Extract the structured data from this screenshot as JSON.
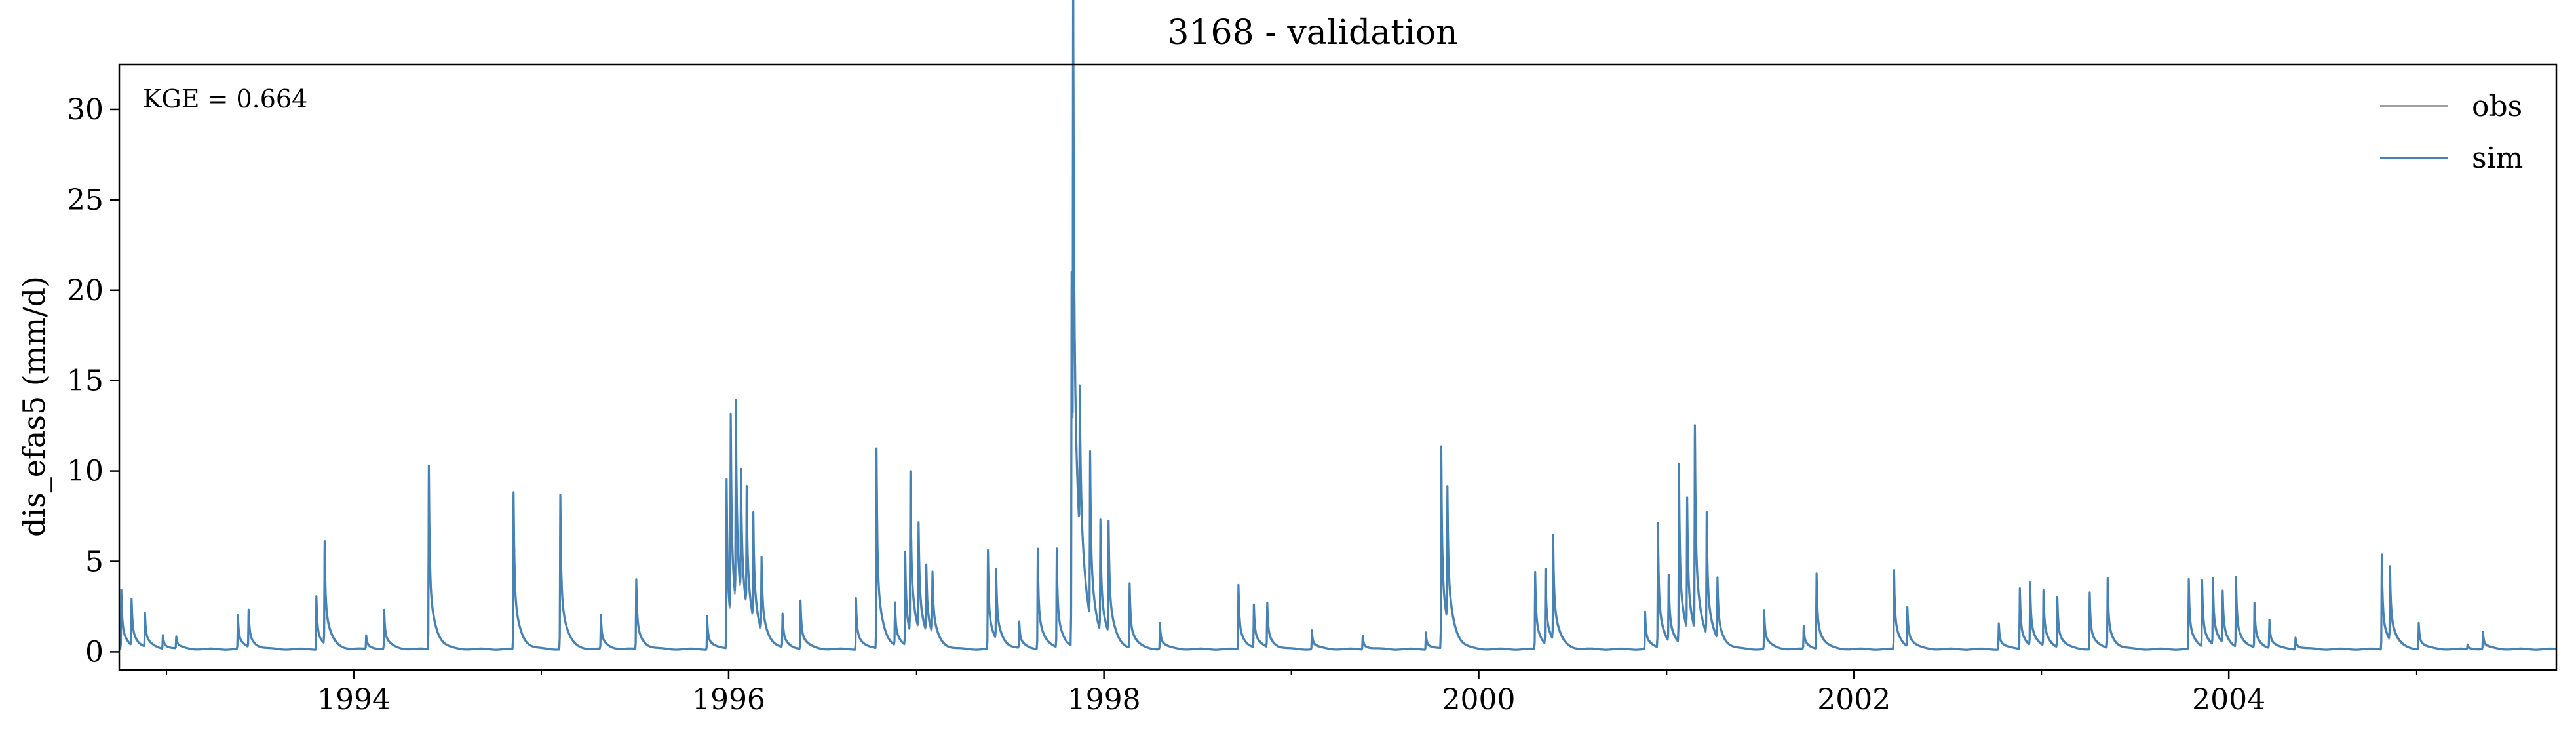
{
  "chart_data": {
    "type": "line",
    "title": "3168 - validation",
    "xlabel": "",
    "ylabel": "dis_efas5 (mm/d)",
    "annotation": "KGE = 0.664",
    "x_axis": {
      "type": "date",
      "min": "1992-10-01",
      "max": "2005-09-30",
      "major_ticks": [
        "1994-01-01",
        "1996-01-01",
        "1998-01-01",
        "2000-01-01",
        "2002-01-01",
        "2004-01-01"
      ],
      "major_tick_labels": [
        "1994",
        "1996",
        "1998",
        "2000",
        "2002",
        "2004"
      ],
      "minor_ticks": [
        "1993-01-01",
        "1995-01-01",
        "1997-01-01",
        "1999-01-01",
        "2001-01-01",
        "2003-01-01",
        "2005-01-01"
      ]
    },
    "y_axis": {
      "min": -1.0,
      "max": 32.5,
      "ticks": [
        0,
        5,
        10,
        15,
        20,
        25,
        30
      ],
      "tick_labels": [
        "0",
        "5",
        "10",
        "15",
        "20",
        "25",
        "30"
      ]
    },
    "grid": false,
    "legend": {
      "position": "top-right",
      "entries": [
        "obs",
        "sim"
      ]
    },
    "baseflow": 0.15,
    "series": [
      {
        "name": "obs",
        "color": "#a0a0a0",
        "peaks": [
          [
            "1992-10-05",
            3.2
          ],
          [
            "1992-10-25",
            2.6
          ],
          [
            "1992-11-20",
            1.9
          ],
          [
            "1992-12-25",
            0.9
          ],
          [
            "1993-01-20",
            0.8
          ],
          [
            "1993-05-20",
            1.9
          ],
          [
            "1993-06-10",
            2.1
          ],
          [
            "1993-10-20",
            3.0
          ],
          [
            "1993-11-05",
            5.4
          ],
          [
            "1994-01-25",
            0.8
          ],
          [
            "1994-03-01",
            2.2
          ],
          [
            "1994-05-27",
            9.8
          ],
          [
            "1994-11-08",
            8.5
          ],
          [
            "1995-02-07",
            8.5
          ],
          [
            "1995-04-27",
            1.9
          ],
          [
            "1995-07-05",
            3.8
          ],
          [
            "1995-11-20",
            1.9
          ],
          [
            "1995-12-28",
            9.0
          ],
          [
            "1996-01-05",
            10.5
          ],
          [
            "1996-01-15",
            10.8
          ],
          [
            "1996-01-25",
            7.0
          ],
          [
            "1996-02-05",
            6.5
          ],
          [
            "1996-02-18",
            5.5
          ],
          [
            "1996-03-05",
            4.0
          ],
          [
            "1996-04-15",
            1.9
          ],
          [
            "1996-05-20",
            2.5
          ],
          [
            "1996-09-05",
            2.9
          ],
          [
            "1996-10-15",
            10.8
          ],
          [
            "1996-11-20",
            2.4
          ],
          [
            "1996-12-10",
            5.0
          ],
          [
            "1996-12-20",
            8.5
          ],
          [
            "1997-01-05",
            5.5
          ],
          [
            "1997-01-20",
            3.5
          ],
          [
            "1997-02-01",
            3.3
          ],
          [
            "1997-05-20",
            5.3
          ],
          [
            "1997-06-05",
            3.8
          ],
          [
            "1997-07-20",
            1.5
          ],
          [
            "1997-08-25",
            5.4
          ],
          [
            "1997-10-01",
            5.4
          ],
          [
            "1997-10-30",
            20.0
          ],
          [
            "1997-11-02",
            30.8
          ],
          [
            "1997-11-15",
            8.0
          ],
          [
            "1997-12-05",
            9.0
          ],
          [
            "1997-12-25",
            6.0
          ],
          [
            "1998-01-10",
            6.0
          ],
          [
            "1998-02-20",
            3.4
          ],
          [
            "1998-04-20",
            1.5
          ],
          [
            "1998-09-20",
            3.5
          ],
          [
            "1998-10-20",
            2.3
          ],
          [
            "1998-11-15",
            2.4
          ],
          [
            "1999-02-10",
            1.0
          ],
          [
            "1999-05-20",
            0.8
          ],
          [
            "1999-09-20",
            1.0
          ],
          [
            "1999-10-20",
            10.8
          ],
          [
            "1999-11-01",
            7.0
          ],
          [
            "2000-04-20",
            4.2
          ],
          [
            "2000-05-10",
            4.0
          ],
          [
            "2000-05-25",
            5.5
          ],
          [
            "2000-11-20",
            2.0
          ],
          [
            "2000-12-15",
            6.5
          ],
          [
            "2001-01-05",
            3.5
          ],
          [
            "2001-01-25",
            9.5
          ],
          [
            "2001-02-10",
            7.0
          ],
          [
            "2001-02-25",
            11.0
          ],
          [
            "2001-03-20",
            6.5
          ],
          [
            "2001-04-10",
            3.3
          ],
          [
            "2001-07-10",
            2.2
          ],
          [
            "2001-09-25",
            1.3
          ],
          [
            "2001-10-20",
            4.0
          ],
          [
            "2002-03-20",
            4.3
          ],
          [
            "2002-04-15",
            2.2
          ],
          [
            "2002-10-10",
            1.5
          ],
          [
            "2002-11-20",
            3.3
          ],
          [
            "2002-12-10",
            3.3
          ],
          [
            "2003-01-05",
            3.0
          ],
          [
            "2003-02-01",
            2.7
          ],
          [
            "2003-04-05",
            3.1
          ],
          [
            "2003-05-10",
            3.7
          ],
          [
            "2003-10-15",
            3.7
          ],
          [
            "2003-11-10",
            3.5
          ],
          [
            "2003-12-01",
            3.5
          ],
          [
            "2003-12-20",
            2.8
          ],
          [
            "2004-01-15",
            3.8
          ],
          [
            "2004-02-20",
            2.4
          ],
          [
            "2004-03-20",
            1.6
          ],
          [
            "2004-05-10",
            0.7
          ],
          [
            "2004-10-25",
            5.0
          ],
          [
            "2004-11-10",
            3.8
          ],
          [
            "2005-01-05",
            1.5
          ],
          [
            "2005-04-10",
            0.3
          ],
          [
            "2005-05-10",
            0.9
          ]
        ]
      },
      {
        "name": "sim",
        "color": "#4682b4",
        "peaks": [
          [
            "1992-10-05",
            3.4
          ],
          [
            "1992-10-25",
            2.7
          ],
          [
            "1992-11-20",
            2.0
          ],
          [
            "1992-12-25",
            0.9
          ],
          [
            "1993-01-20",
            0.8
          ],
          [
            "1993-05-20",
            2.0
          ],
          [
            "1993-06-10",
            2.2
          ],
          [
            "1993-10-20",
            3.1
          ],
          [
            "1993-11-05",
            5.8
          ],
          [
            "1994-01-25",
            0.9
          ],
          [
            "1994-03-01",
            2.3
          ],
          [
            "1994-05-27",
            10.3
          ],
          [
            "1994-11-08",
            8.8
          ],
          [
            "1995-02-07",
            8.7
          ],
          [
            "1995-04-27",
            2.0
          ],
          [
            "1995-07-05",
            4.0
          ],
          [
            "1995-11-20",
            2.0
          ],
          [
            "1995-12-28",
            9.5
          ],
          [
            "1996-01-05",
            11.2
          ],
          [
            "1996-01-15",
            11.2
          ],
          [
            "1996-01-25",
            7.0
          ],
          [
            "1996-02-05",
            6.8
          ],
          [
            "1996-02-18",
            6.0
          ],
          [
            "1996-03-05",
            4.2
          ],
          [
            "1996-04-15",
            2.0
          ],
          [
            "1996-05-20",
            2.8
          ],
          [
            "1996-09-05",
            3.0
          ],
          [
            "1996-10-15",
            11.2
          ],
          [
            "1996-11-20",
            2.5
          ],
          [
            "1996-12-10",
            5.3
          ],
          [
            "1996-12-20",
            9.0
          ],
          [
            "1997-01-05",
            6.0
          ],
          [
            "1997-01-20",
            3.8
          ],
          [
            "1997-02-01",
            3.5
          ],
          [
            "1997-05-20",
            5.6
          ],
          [
            "1997-06-05",
            4.0
          ],
          [
            "1997-07-20",
            1.6
          ],
          [
            "1997-08-25",
            5.7
          ],
          [
            "1997-10-01",
            5.6
          ],
          [
            "1997-10-30",
            20.8
          ],
          [
            "1997-11-02",
            29.4
          ],
          [
            "1997-11-15",
            8.5
          ],
          [
            "1997-12-05",
            9.3
          ],
          [
            "1997-12-25",
            6.3
          ],
          [
            "1998-01-10",
            6.3
          ],
          [
            "1998-02-20",
            3.7
          ],
          [
            "1998-04-20",
            1.6
          ],
          [
            "1998-09-20",
            3.7
          ],
          [
            "1998-10-20",
            2.5
          ],
          [
            "1998-11-15",
            2.6
          ],
          [
            "1999-02-10",
            1.2
          ],
          [
            "1999-05-20",
            0.9
          ],
          [
            "1999-09-20",
            1.1
          ],
          [
            "1999-10-20",
            11.3
          ],
          [
            "1999-11-01",
            7.5
          ],
          [
            "2000-04-20",
            4.4
          ],
          [
            "2000-05-10",
            4.3
          ],
          [
            "2000-05-25",
            5.9
          ],
          [
            "2000-11-20",
            2.2
          ],
          [
            "2000-12-15",
            7.0
          ],
          [
            "2001-01-05",
            3.8
          ],
          [
            "2001-01-25",
            10.0
          ],
          [
            "2001-02-10",
            7.4
          ],
          [
            "2001-02-25",
            11.4
          ],
          [
            "2001-03-20",
            6.9
          ],
          [
            "2001-04-10",
            3.5
          ],
          [
            "2001-07-10",
            2.3
          ],
          [
            "2001-09-25",
            1.4
          ],
          [
            "2001-10-20",
            4.3
          ],
          [
            "2002-03-20",
            4.5
          ],
          [
            "2002-04-15",
            2.3
          ],
          [
            "2002-10-10",
            1.6
          ],
          [
            "2002-11-20",
            3.5
          ],
          [
            "2002-12-10",
            3.6
          ],
          [
            "2003-01-05",
            3.2
          ],
          [
            "2003-02-01",
            2.9
          ],
          [
            "2003-04-05",
            3.3
          ],
          [
            "2003-05-10",
            4.0
          ],
          [
            "2003-10-15",
            4.0
          ],
          [
            "2003-11-10",
            3.8
          ],
          [
            "2003-12-01",
            3.8
          ],
          [
            "2003-12-20",
            3.0
          ],
          [
            "2004-01-15",
            4.0
          ],
          [
            "2004-02-20",
            2.6
          ],
          [
            "2004-03-20",
            1.7
          ],
          [
            "2004-05-10",
            0.8
          ],
          [
            "2004-10-25",
            5.4
          ],
          [
            "2004-11-10",
            4.2
          ],
          [
            "2005-01-05",
            1.6
          ],
          [
            "2005-04-10",
            0.4
          ],
          [
            "2005-05-10",
            1.1
          ]
        ]
      }
    ]
  }
}
